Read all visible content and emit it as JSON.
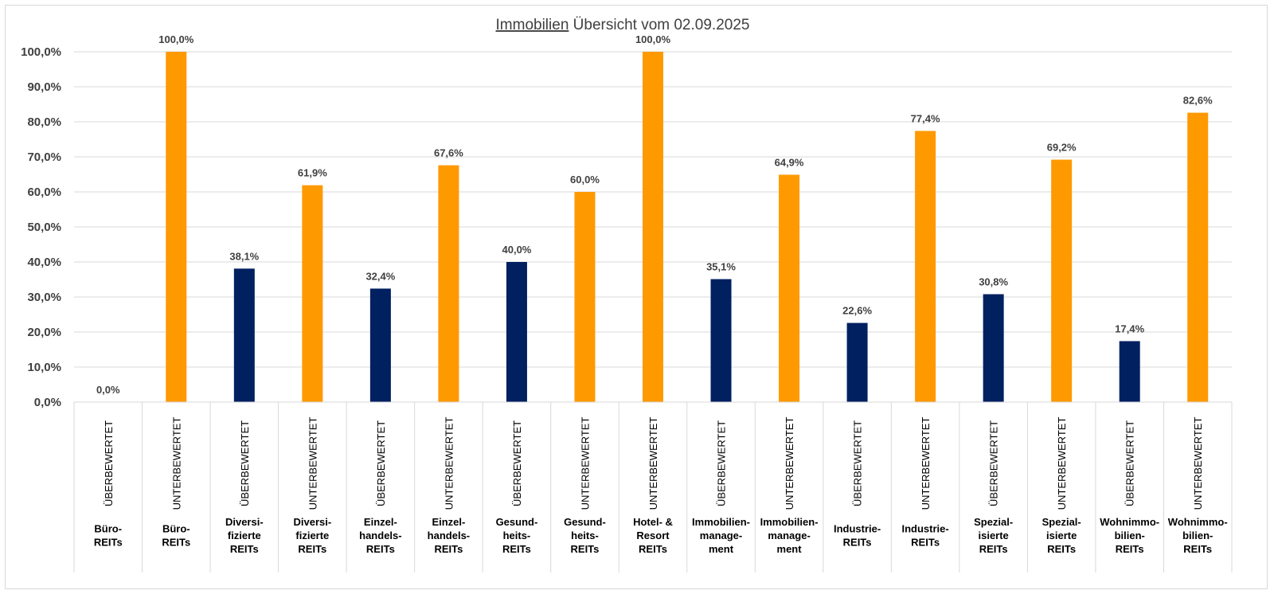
{
  "chart_data": {
    "type": "bar",
    "title_underlined": "Immobilien",
    "title_rest": " Übersicht vom 02.09.2025",
    "y_ticks": [
      "0,0%",
      "10,0%",
      "20,0%",
      "30,0%",
      "40,0%",
      "50,0%",
      "60,0%",
      "70,0%",
      "80,0%",
      "90,0%",
      "100,0%"
    ],
    "ylim": [
      0,
      100
    ],
    "grid": true,
    "legend": "none",
    "colors": {
      "ÜBERBEWERTET": "#002060",
      "UNTERBEWERTET": "#FF9900"
    },
    "categories": [
      {
        "valuation": "ÜBERBEWERTET",
        "sector": [
          "Büro-",
          "REITs"
        ],
        "value": 0.0,
        "label": "0,0%"
      },
      {
        "valuation": "UNTERBEWERTET",
        "sector": [
          "Büro-",
          "REITs"
        ],
        "value": 100.0,
        "label": "100,0%"
      },
      {
        "valuation": "ÜBERBEWERTET",
        "sector": [
          "Diversi-",
          "fizierte",
          "REITs"
        ],
        "value": 38.1,
        "label": "38,1%"
      },
      {
        "valuation": "UNTERBEWERTET",
        "sector": [
          "Diversi-",
          "fizierte",
          "REITs"
        ],
        "value": 61.9,
        "label": "61,9%"
      },
      {
        "valuation": "ÜBERBEWERTET",
        "sector": [
          "Einzel-",
          "handels-",
          "REITs"
        ],
        "value": 32.4,
        "label": "32,4%"
      },
      {
        "valuation": "UNTERBEWERTET",
        "sector": [
          "Einzel-",
          "handels-",
          "REITs"
        ],
        "value": 67.6,
        "label": "67,6%"
      },
      {
        "valuation": "ÜBERBEWERTET",
        "sector": [
          "Gesund-",
          "heits-",
          "REITs"
        ],
        "value": 40.0,
        "label": "40,0%"
      },
      {
        "valuation": "UNTERBEWERTET",
        "sector": [
          "Gesund-",
          "heits-",
          "REITs"
        ],
        "value": 60.0,
        "label": "60,0%"
      },
      {
        "valuation": "UNTERBEWERTET",
        "sector": [
          "Hotel- &",
          "Resort",
          "REITs"
        ],
        "value": 100.0,
        "label": "100,0%"
      },
      {
        "valuation": "ÜBERBEWERTET",
        "sector": [
          "Immobilien-",
          "manage-",
          "ment"
        ],
        "value": 35.1,
        "label": "35,1%"
      },
      {
        "valuation": "UNTERBEWERTET",
        "sector": [
          "Immobilien-",
          "manage-",
          "ment"
        ],
        "value": 64.9,
        "label": "64,9%"
      },
      {
        "valuation": "ÜBERBEWERTET",
        "sector": [
          "Industrie-",
          "REITs"
        ],
        "value": 22.6,
        "label": "22,6%"
      },
      {
        "valuation": "UNTERBEWERTET",
        "sector": [
          "Industrie-",
          "REITs"
        ],
        "value": 77.4,
        "label": "77,4%"
      },
      {
        "valuation": "ÜBERBEWERTET",
        "sector": [
          "Spezial-",
          "isierte",
          "REITs"
        ],
        "value": 30.8,
        "label": "30,8%"
      },
      {
        "valuation": "UNTERBEWERTET",
        "sector": [
          "Spezial-",
          "isierte",
          "REITs"
        ],
        "value": 69.2,
        "label": "69,2%"
      },
      {
        "valuation": "ÜBERBEWERTET",
        "sector": [
          "Wohnimmo-",
          "bilien-",
          "REITs"
        ],
        "value": 17.4,
        "label": "17,4%"
      },
      {
        "valuation": "UNTERBEWERTET",
        "sector": [
          "Wohnimmo-",
          "bilien-",
          "REITs"
        ],
        "value": 82.6,
        "label": "82,6%"
      }
    ]
  }
}
